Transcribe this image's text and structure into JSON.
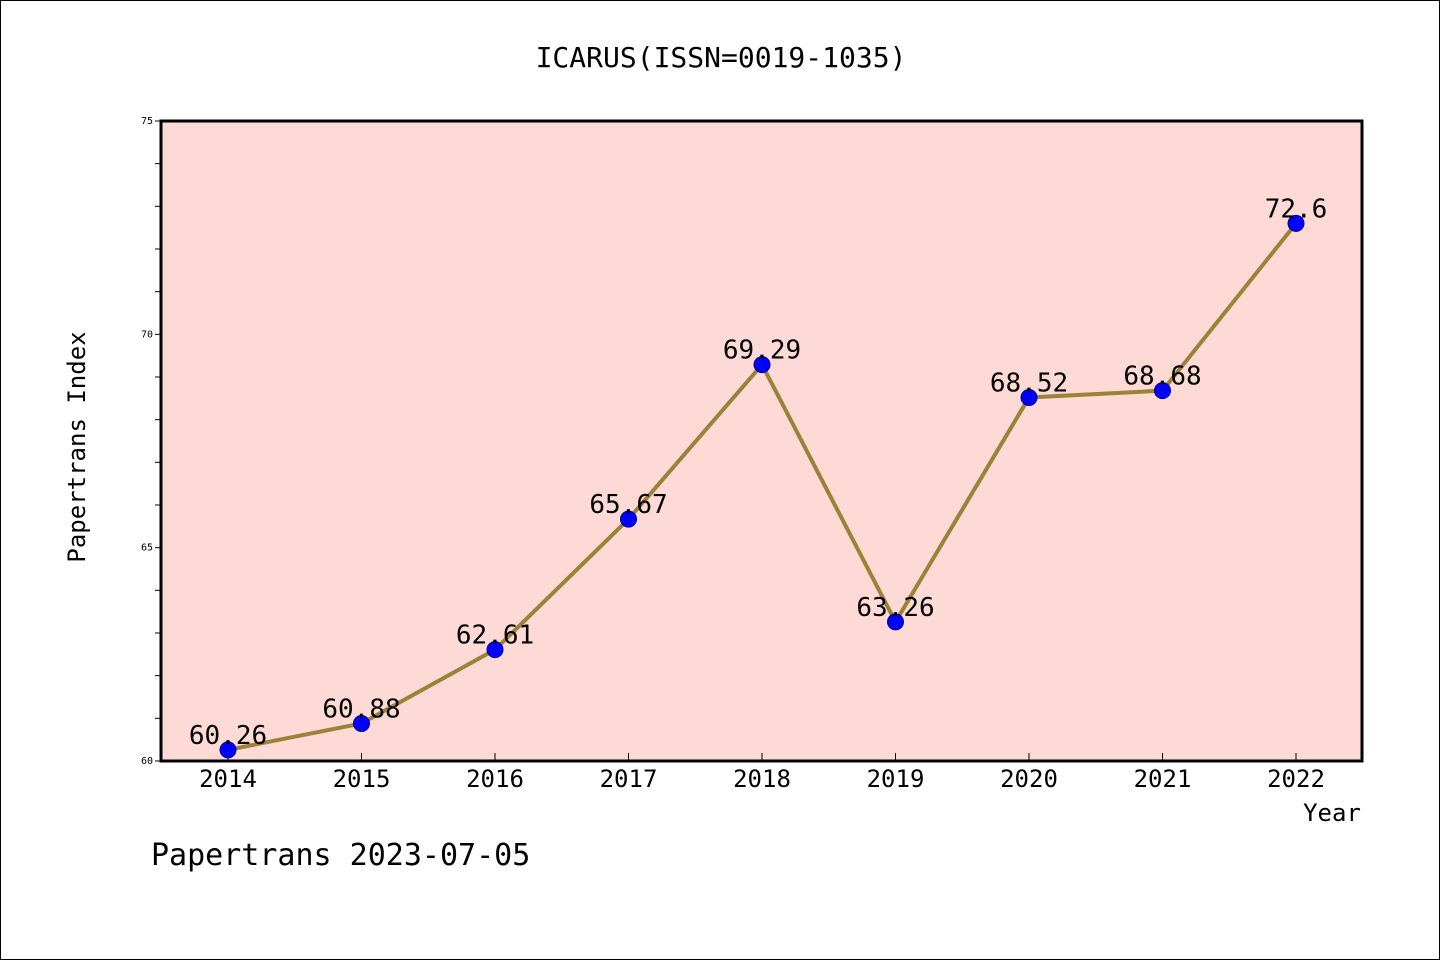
{
  "chart_data": {
    "type": "line",
    "title": "ICARUS(ISSN=0019-1035)",
    "xlabel": "Year",
    "ylabel": "Papertrans Index",
    "categories": [
      "2014",
      "2015",
      "2016",
      "2017",
      "2018",
      "2019",
      "2020",
      "2021",
      "2022"
    ],
    "series": [
      {
        "values": [
          60.26,
          60.88,
          62.61,
          65.67,
          69.29,
          63.26,
          68.52,
          68.68,
          72.6
        ],
        "labels": [
          "60.26",
          "60.88",
          "62.61",
          "65.67",
          "69.29",
          "63.26",
          "68.52",
          "68.68",
          "72.6"
        ]
      }
    ],
    "ylim": [
      60,
      75
    ],
    "yticks": [
      "60",
      "65",
      "70",
      "75"
    ],
    "grid": false,
    "legend": "none",
    "colors": {
      "plot_background": "#FDDAD6",
      "line": "#9C8239",
      "marker": "#0000FF"
    }
  },
  "footer": "Papertrans 2023-07-05"
}
